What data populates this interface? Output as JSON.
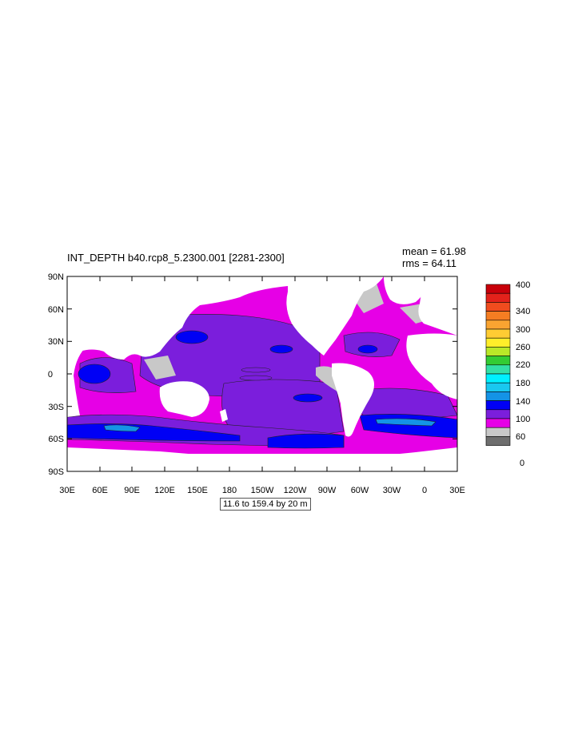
{
  "title": "INT_DEPTH b40.rcp8_5.2300.001 [2281-2300]",
  "stats": {
    "mean": "mean = 61.98",
    "rms": "rms = 64.11"
  },
  "caption": "11.6 to 159.4 by 20 m",
  "lat_labels": [
    "90N",
    "60N",
    "30N",
    "0",
    "30S",
    "60S",
    "90S"
  ],
  "lon_labels": [
    "30E",
    "60E",
    "90E",
    "120E",
    "150E",
    "180",
    "150W",
    "120W",
    "90W",
    "60W",
    "30W",
    "0",
    "30E"
  ],
  "colorbar": {
    "labels": [
      "400",
      "340",
      "300",
      "260",
      "220",
      "180",
      "140",
      "100",
      "60",
      "0"
    ],
    "colors": [
      "#c8000a",
      "#e3221b",
      "#f04c1e",
      "#f57d22",
      "#f9a431",
      "#ffcc33",
      "#ffee2a",
      "#b9e828",
      "#33cc33",
      "#33e0a6",
      "#00f0ff",
      "#19c8f0",
      "#1493e6",
      "#0000f5",
      "#7b1edc",
      "#e600e6",
      "#c8c8c8",
      "#6e6e6e"
    ]
  },
  "colors": {
    "ocean_base": "#e600e6",
    "ocean_deep": "#0000f5",
    "ocean_mid": "#7b1edc",
    "ocean_shallow": "#1493e6",
    "sea_ice": "#c8c8c8",
    "land": "#ffffff"
  }
}
